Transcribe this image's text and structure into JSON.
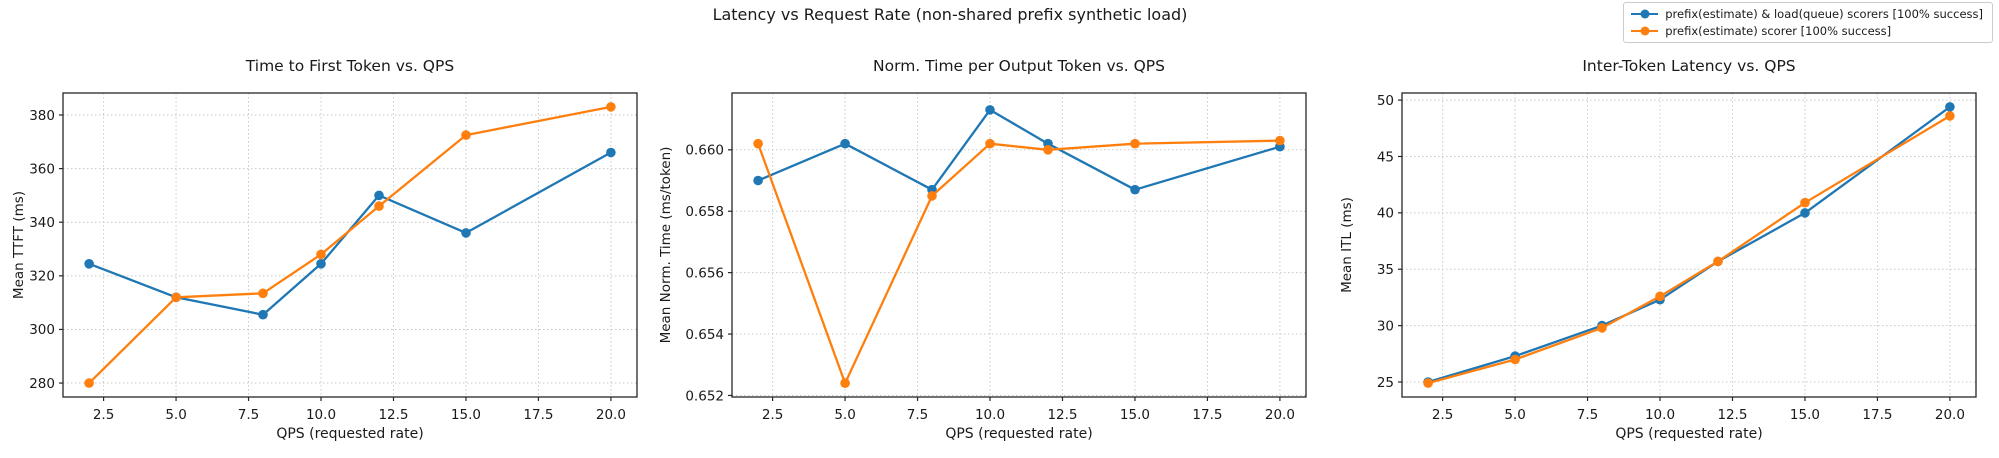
{
  "figure": {
    "title": "Latency vs Request Rate (non-shared prefix synthetic load)"
  },
  "legend": {
    "position": "top-right",
    "items": [
      {
        "label": "prefix(estimate) & load(queue) scorers [100% success]",
        "color": "#1f77b4",
        "marker": "circle-on-line"
      },
      {
        "label": "prefix(estimate) scorer [100% success]",
        "color": "#ff7f0e",
        "marker": "circle-on-line"
      }
    ]
  },
  "chart_data": [
    {
      "type": "line",
      "title": "Time to First Token vs. QPS",
      "xlabel": "QPS (requested rate)",
      "ylabel": "Mean TTFT (ms)",
      "grid": true,
      "x": [
        2,
        5,
        8,
        10,
        12,
        15,
        20
      ],
      "xlim": [
        1.1,
        20.9
      ],
      "ylim": [
        274.8,
        388.2
      ],
      "xticks": [
        {
          "value": 2.5,
          "label": "2.5"
        },
        {
          "value": 5.0,
          "label": "5.0"
        },
        {
          "value": 7.5,
          "label": "7.5"
        },
        {
          "value": 10.0,
          "label": "10.0"
        },
        {
          "value": 12.5,
          "label": "12.5"
        },
        {
          "value": 15.0,
          "label": "15.0"
        },
        {
          "value": 17.5,
          "label": "17.5"
        },
        {
          "value": 20.0,
          "label": "20.0"
        }
      ],
      "yticks": [
        {
          "value": 280,
          "label": "280"
        },
        {
          "value": 300,
          "label": "300"
        },
        {
          "value": 320,
          "label": "320"
        },
        {
          "value": 340,
          "label": "340"
        },
        {
          "value": 360,
          "label": "360"
        },
        {
          "value": 380,
          "label": "380"
        }
      ],
      "series": [
        {
          "name": "prefix(estimate) & load(queue) scorers [100% success]",
          "color": "#1f77b4",
          "values": [
            324.5,
            312.0,
            305.5,
            324.5,
            350.0,
            336.0,
            366.0
          ]
        },
        {
          "name": "prefix(estimate) scorer [100% success]",
          "color": "#ff7f0e",
          "values": [
            280.0,
            312.0,
            313.5,
            328.0,
            346.0,
            372.5,
            383.0
          ]
        }
      ]
    },
    {
      "type": "line",
      "title": "Norm. Time per Output Token vs. QPS",
      "xlabel": "QPS (requested rate)",
      "ylabel": "Mean Norm. Time (ms/token)",
      "grid": true,
      "x": [
        2,
        5,
        8,
        10,
        12,
        15,
        20
      ],
      "xlim": [
        1.1,
        20.9
      ],
      "ylim": [
        0.65195,
        0.66185
      ],
      "xticks": [
        {
          "value": 2.5,
          "label": "2.5"
        },
        {
          "value": 5.0,
          "label": "5.0"
        },
        {
          "value": 7.5,
          "label": "7.5"
        },
        {
          "value": 10.0,
          "label": "10.0"
        },
        {
          "value": 12.5,
          "label": "12.5"
        },
        {
          "value": 15.0,
          "label": "15.0"
        },
        {
          "value": 17.5,
          "label": "17.5"
        },
        {
          "value": 20.0,
          "label": "20.0"
        }
      ],
      "yticks": [
        {
          "value": 0.652,
          "label": "0.652"
        },
        {
          "value": 0.654,
          "label": "0.654"
        },
        {
          "value": 0.656,
          "label": "0.656"
        },
        {
          "value": 0.658,
          "label": "0.658"
        },
        {
          "value": 0.66,
          "label": "0.660"
        }
      ],
      "series": [
        {
          "name": "prefix(estimate) & load(queue) scorers [100% success]",
          "color": "#1f77b4",
          "values": [
            0.659,
            0.6602,
            0.6587,
            0.6613,
            0.6602,
            0.6587,
            0.6601
          ]
        },
        {
          "name": "prefix(estimate) scorer [100% success]",
          "color": "#ff7f0e",
          "values": [
            0.6602,
            0.6524,
            0.6585,
            0.6602,
            0.66,
            0.6602,
            0.6603
          ]
        }
      ]
    },
    {
      "type": "line",
      "title": "Inter-Token Latency vs. QPS",
      "xlabel": "QPS (requested rate)",
      "ylabel": "Mean ITL (ms)",
      "grid": true,
      "x": [
        2,
        5,
        8,
        10,
        12,
        15,
        20
      ],
      "xlim": [
        1.1,
        20.9
      ],
      "ylim": [
        23.67,
        50.63
      ],
      "xticks": [
        {
          "value": 2.5,
          "label": "2.5"
        },
        {
          "value": 5.0,
          "label": "5.0"
        },
        {
          "value": 7.5,
          "label": "7.5"
        },
        {
          "value": 10.0,
          "label": "10.0"
        },
        {
          "value": 12.5,
          "label": "12.5"
        },
        {
          "value": 15.0,
          "label": "15.0"
        },
        {
          "value": 17.5,
          "label": "17.5"
        },
        {
          "value": 20.0,
          "label": "20.0"
        }
      ],
      "yticks": [
        {
          "value": 25,
          "label": "25"
        },
        {
          "value": 30,
          "label": "30"
        },
        {
          "value": 35,
          "label": "35"
        },
        {
          "value": 40,
          "label": "40"
        },
        {
          "value": 45,
          "label": "45"
        },
        {
          "value": 50,
          "label": "50"
        }
      ],
      "series": [
        {
          "name": "prefix(estimate) & load(queue) scorers [100% success]",
          "color": "#1f77b4",
          "values": [
            25.0,
            27.3,
            30.0,
            32.3,
            35.7,
            40.0,
            49.4
          ]
        },
        {
          "name": "prefix(estimate) scorer [100% success]",
          "color": "#ff7f0e",
          "values": [
            24.9,
            27.0,
            29.8,
            32.6,
            35.7,
            40.9,
            48.6
          ]
        }
      ]
    }
  ]
}
